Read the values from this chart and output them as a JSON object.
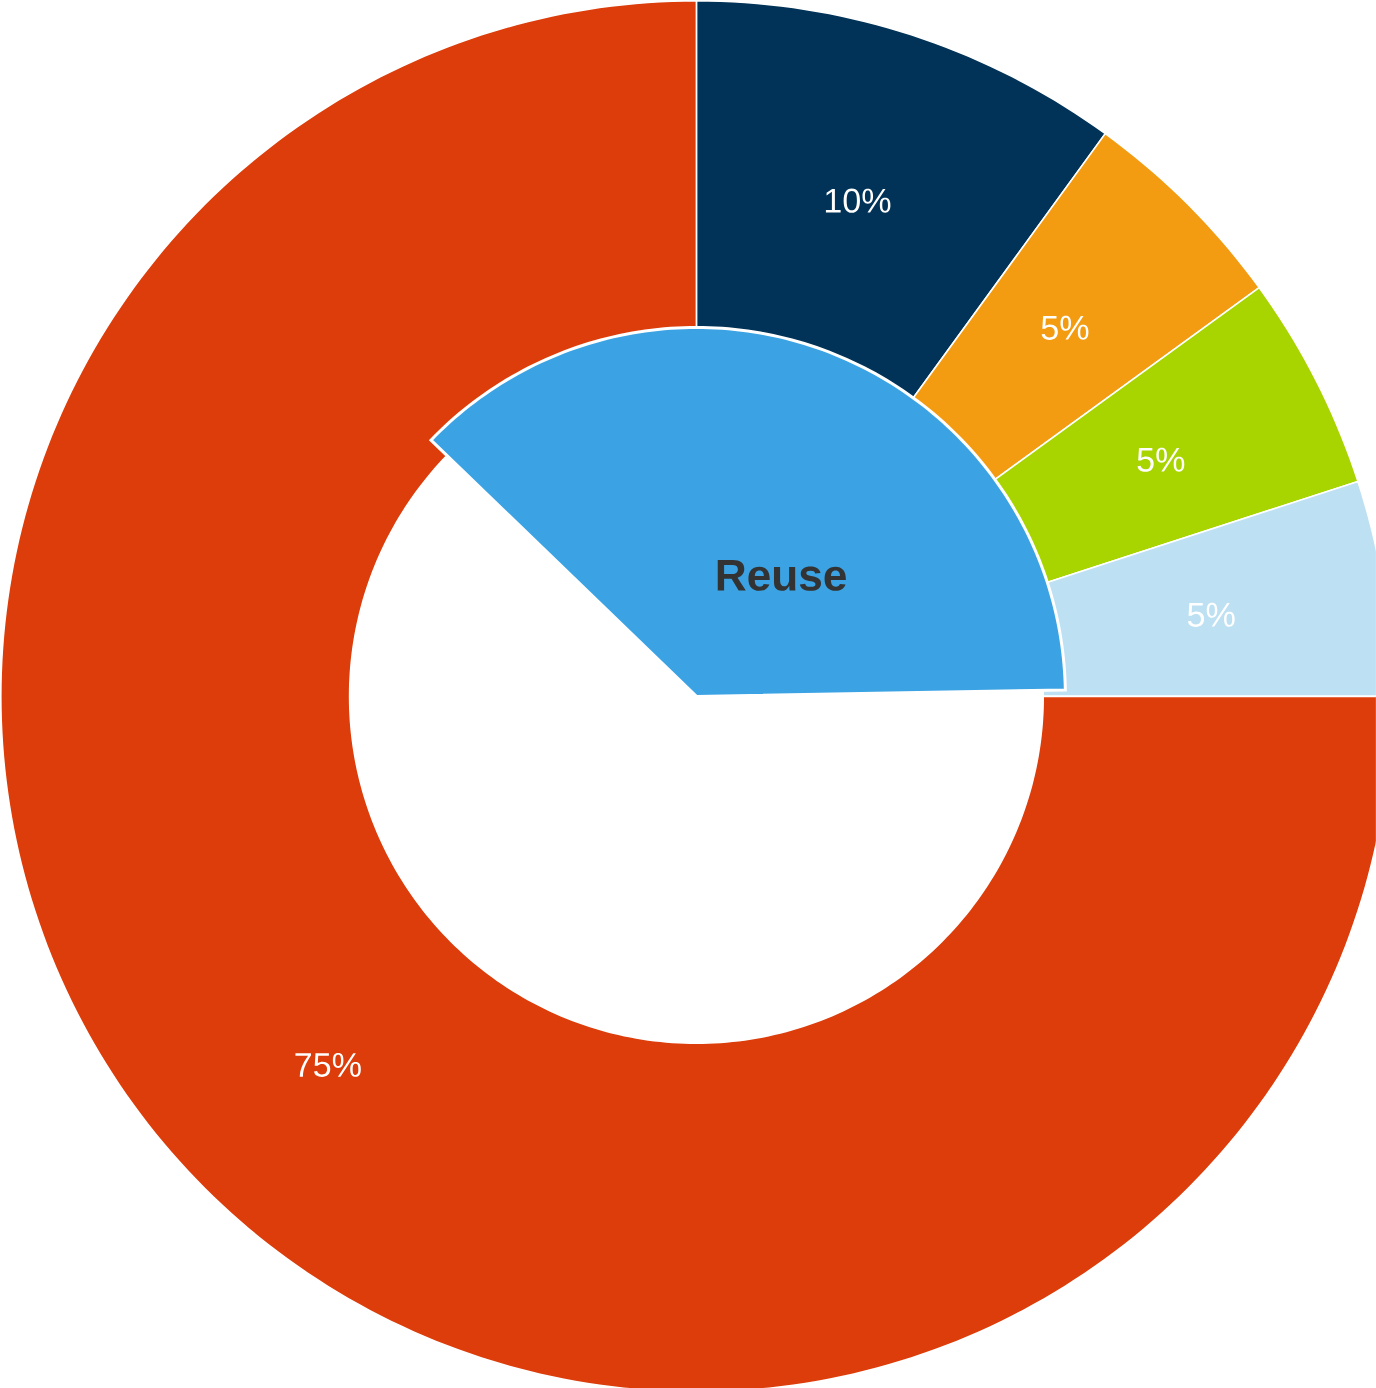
{
  "chart_data": {
    "type": "donut",
    "categories": [
      null,
      null,
      null,
      null,
      null
    ],
    "values": [
      10,
      5,
      5,
      5,
      75
    ],
    "colors": [
      "#003357",
      "#f39c12",
      "#a8d400",
      "#bde0f2",
      "#dc3d0a"
    ],
    "value_labels": [
      "10%",
      "5%",
      "5%",
      "5%",
      "75%"
    ],
    "annotations": [
      "Reuse"
    ]
  }
}
